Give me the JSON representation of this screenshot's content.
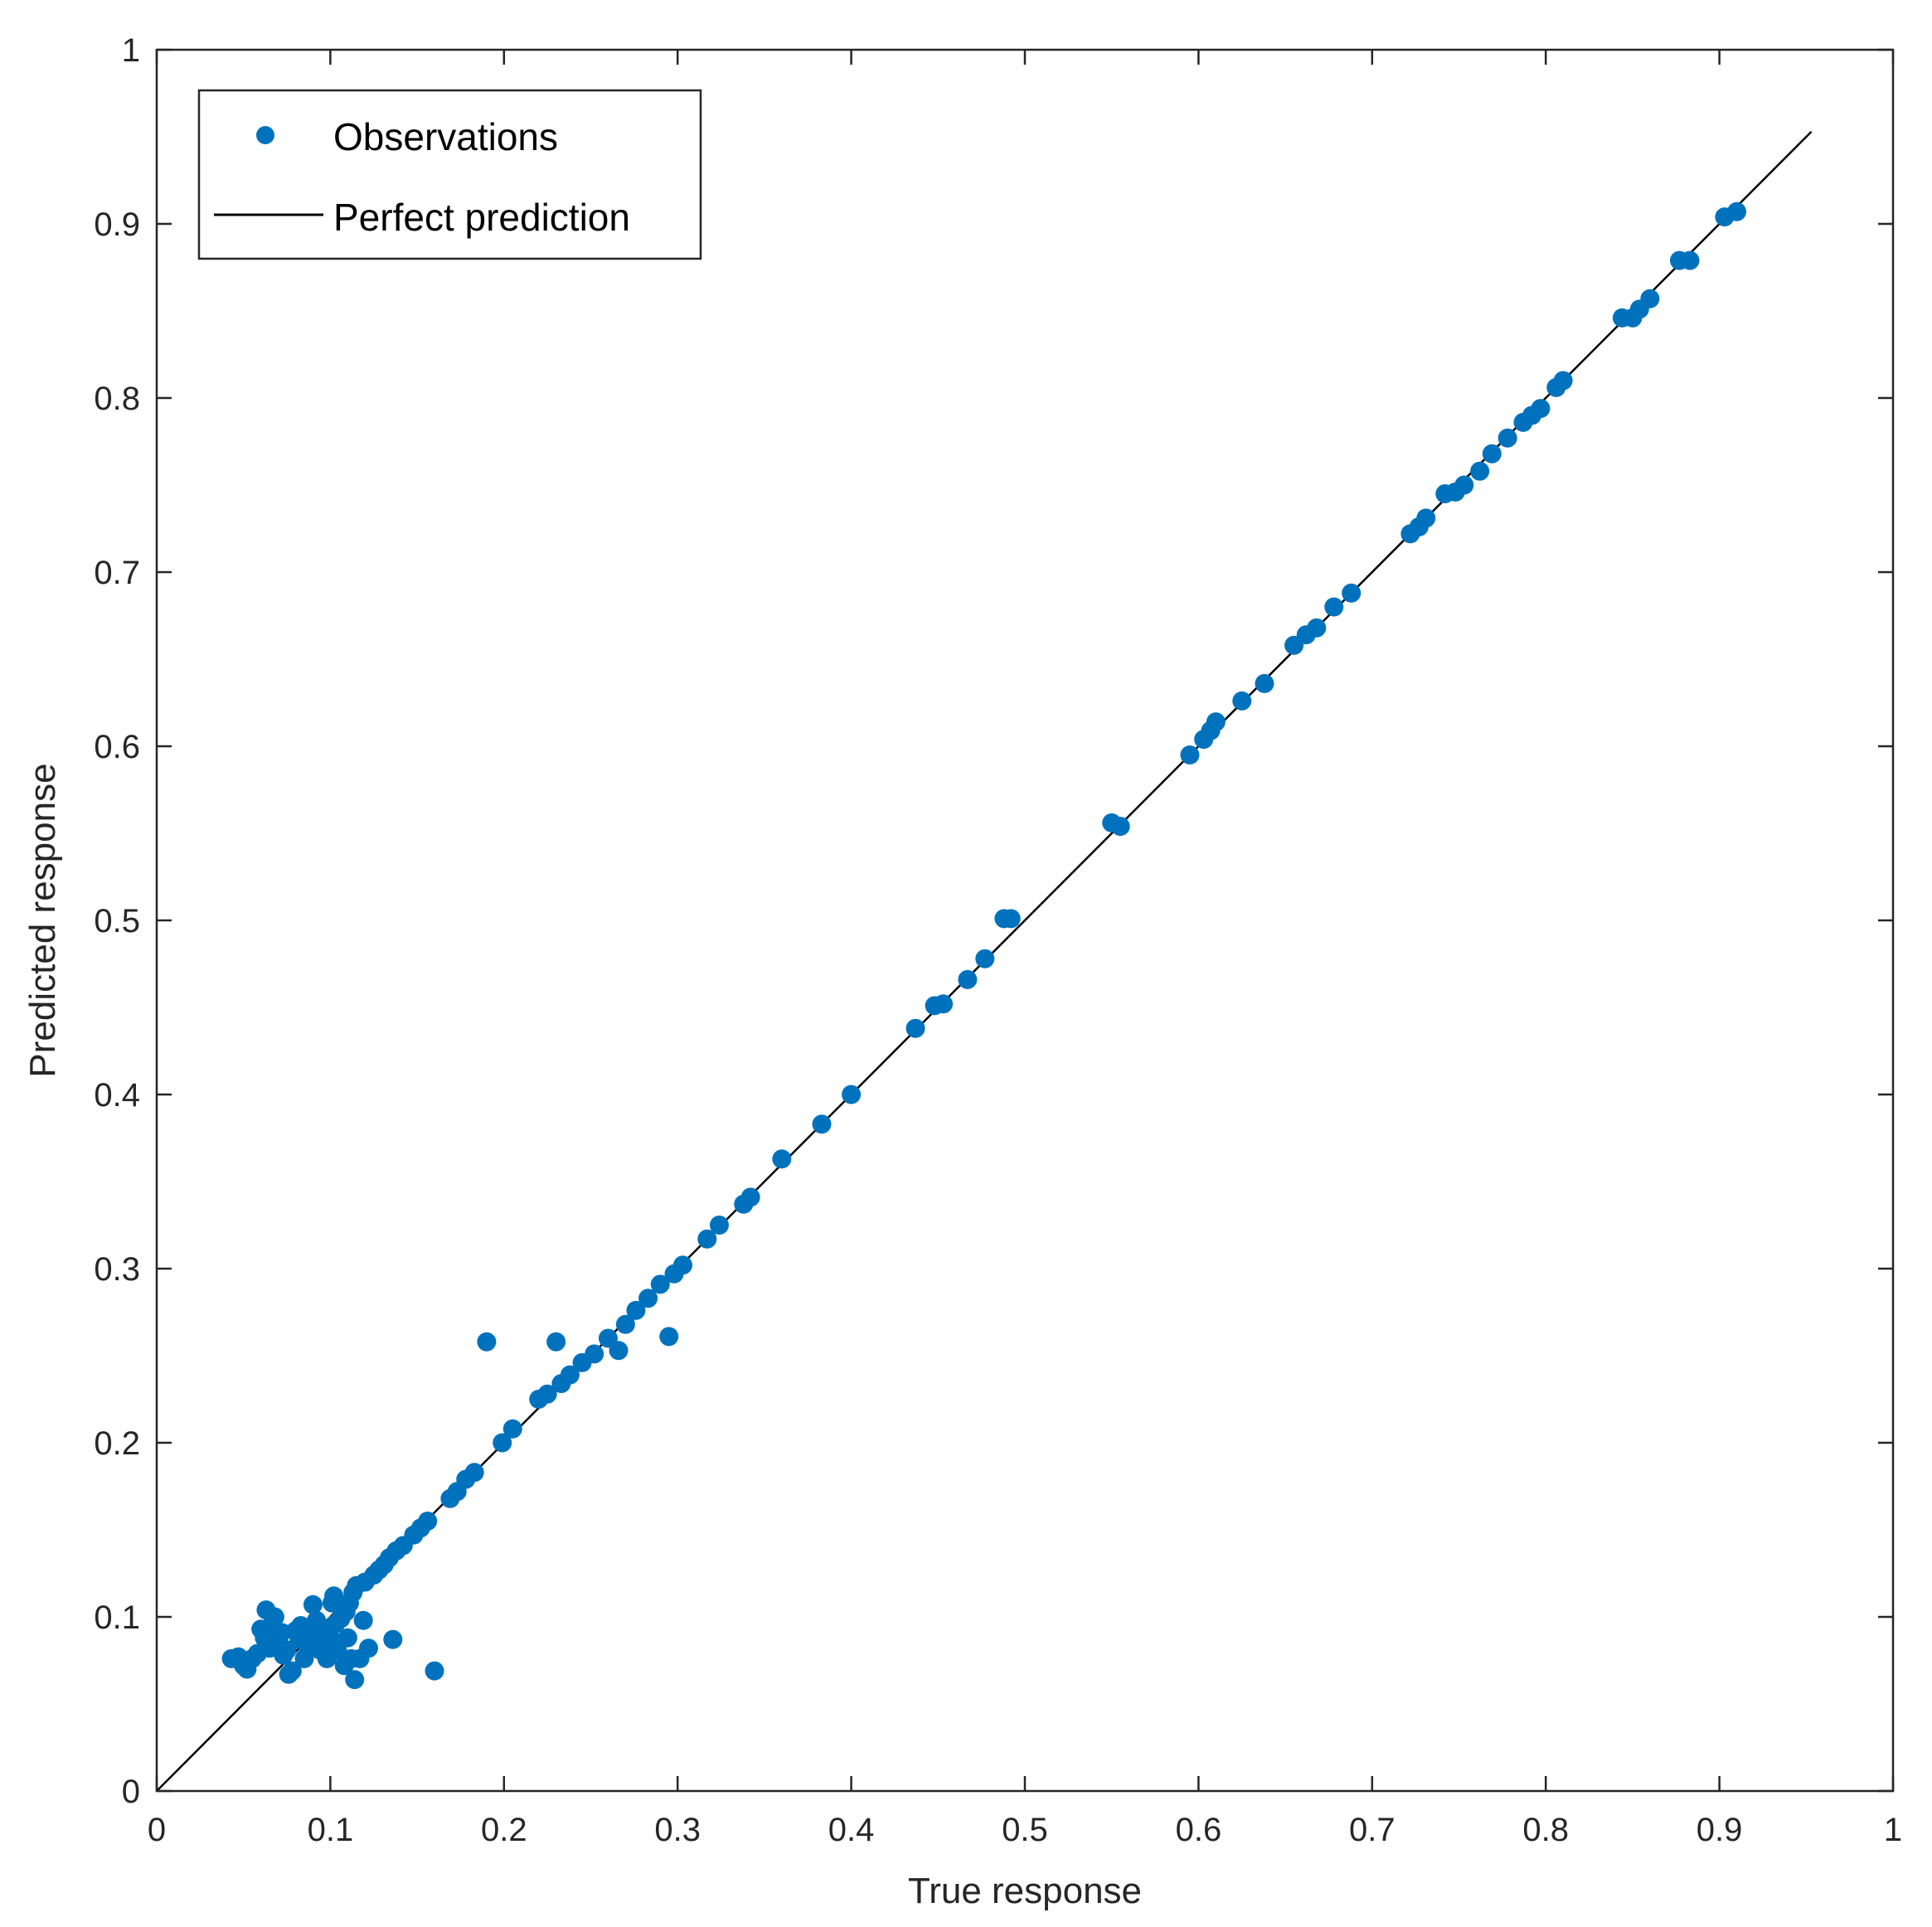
{
  "chart_data": {
    "type": "scatter",
    "title": "",
    "xlabel": "True response",
    "ylabel": "Predicted response",
    "xlim": [
      0,
      1
    ],
    "ylim": [
      0,
      1
    ],
    "xticks": [
      "0",
      "0.1",
      "0.2",
      "0.3",
      "0.4",
      "0.5",
      "0.6",
      "0.7",
      "0.8",
      "0.9",
      "1"
    ],
    "yticks": [
      "0",
      "0.1",
      "0.2",
      "0.3",
      "0.4",
      "0.5",
      "0.6",
      "0.7",
      "0.8",
      "0.9",
      "1"
    ],
    "grid": false,
    "legend": {
      "position": "top-left",
      "entries": [
        "Observations",
        "Perfect prediction"
      ]
    },
    "colors": {
      "observations": "#0072BD",
      "reference": "#000000",
      "axes": "#262626"
    },
    "series": [
      {
        "name": "Observations",
        "type": "scatter",
        "points": [
          [
            0.043,
            0.076
          ],
          [
            0.047,
            0.077
          ],
          [
            0.05,
            0.072
          ],
          [
            0.052,
            0.07
          ],
          [
            0.055,
            0.076
          ],
          [
            0.058,
            0.079
          ],
          [
            0.06,
            0.093
          ],
          [
            0.062,
            0.088
          ],
          [
            0.063,
            0.104
          ],
          [
            0.065,
            0.082
          ],
          [
            0.066,
            0.095
          ],
          [
            0.068,
            0.1
          ],
          [
            0.07,
            0.086
          ],
          [
            0.072,
            0.091
          ],
          [
            0.073,
            0.078
          ],
          [
            0.075,
            0.081
          ],
          [
            0.076,
            0.067
          ],
          [
            0.078,
            0.069
          ],
          [
            0.08,
            0.092
          ],
          [
            0.082,
            0.087
          ],
          [
            0.083,
            0.095
          ],
          [
            0.085,
            0.076
          ],
          [
            0.087,
            0.083
          ],
          [
            0.089,
            0.093
          ],
          [
            0.09,
            0.107
          ],
          [
            0.092,
            0.098
          ],
          [
            0.094,
            0.081
          ],
          [
            0.095,
            0.089
          ],
          [
            0.097,
            0.093
          ],
          [
            0.098,
            0.076
          ],
          [
            0.1,
            0.088
          ],
          [
            0.101,
            0.108
          ],
          [
            0.102,
            0.112
          ],
          [
            0.103,
            0.096
          ],
          [
            0.104,
            0.081
          ],
          [
            0.106,
            0.099
          ],
          [
            0.108,
            0.072
          ],
          [
            0.109,
            0.103
          ],
          [
            0.11,
            0.088
          ],
          [
            0.111,
            0.108
          ],
          [
            0.112,
            0.076
          ],
          [
            0.113,
            0.114
          ],
          [
            0.114,
            0.064
          ],
          [
            0.115,
            0.118
          ],
          [
            0.117,
            0.076
          ],
          [
            0.119,
            0.098
          ],
          [
            0.12,
            0.12
          ],
          [
            0.122,
            0.082
          ],
          [
            0.125,
            0.124
          ],
          [
            0.128,
            0.127
          ],
          [
            0.131,
            0.13
          ],
          [
            0.134,
            0.134
          ],
          [
            0.136,
            0.087
          ],
          [
            0.138,
            0.138
          ],
          [
            0.142,
            0.141
          ],
          [
            0.148,
            0.147
          ],
          [
            0.152,
            0.151
          ],
          [
            0.156,
            0.155
          ],
          [
            0.16,
            0.069
          ],
          [
            0.169,
            0.168
          ],
          [
            0.173,
            0.172
          ],
          [
            0.178,
            0.179
          ],
          [
            0.183,
            0.183
          ],
          [
            0.19,
            0.258
          ],
          [
            0.199,
            0.2
          ],
          [
            0.205,
            0.208
          ],
          [
            0.22,
            0.225
          ],
          [
            0.225,
            0.228
          ],
          [
            0.23,
            0.258
          ],
          [
            0.233,
            0.234
          ],
          [
            0.238,
            0.239
          ],
          [
            0.245,
            0.246
          ],
          [
            0.252,
            0.251
          ],
          [
            0.26,
            0.26
          ],
          [
            0.266,
            0.253
          ],
          [
            0.27,
            0.268
          ],
          [
            0.276,
            0.276
          ],
          [
            0.283,
            0.283
          ],
          [
            0.29,
            0.291
          ],
          [
            0.295,
            0.261
          ],
          [
            0.298,
            0.297
          ],
          [
            0.303,
            0.302
          ],
          [
            0.317,
            0.317
          ],
          [
            0.324,
            0.325
          ],
          [
            0.338,
            0.337
          ],
          [
            0.342,
            0.341
          ],
          [
            0.36,
            0.363
          ],
          [
            0.383,
            0.383
          ],
          [
            0.4,
            0.4
          ],
          [
            0.437,
            0.438
          ],
          [
            0.448,
            0.451
          ],
          [
            0.453,
            0.452
          ],
          [
            0.467,
            0.466
          ],
          [
            0.477,
            0.478
          ],
          [
            0.488,
            0.501
          ],
          [
            0.492,
            0.501
          ],
          [
            0.55,
            0.556
          ],
          [
            0.555,
            0.554
          ],
          [
            0.595,
            0.595
          ],
          [
            0.603,
            0.604
          ],
          [
            0.607,
            0.609
          ],
          [
            0.61,
            0.614
          ],
          [
            0.625,
            0.626
          ],
          [
            0.638,
            0.636
          ],
          [
            0.655,
            0.658
          ],
          [
            0.662,
            0.664
          ],
          [
            0.668,
            0.668
          ],
          [
            0.678,
            0.68
          ],
          [
            0.688,
            0.688
          ],
          [
            0.722,
            0.722
          ],
          [
            0.727,
            0.726
          ],
          [
            0.731,
            0.731
          ],
          [
            0.742,
            0.745
          ],
          [
            0.748,
            0.746
          ],
          [
            0.753,
            0.75
          ],
          [
            0.762,
            0.758
          ],
          [
            0.769,
            0.768
          ],
          [
            0.778,
            0.777
          ],
          [
            0.787,
            0.786
          ],
          [
            0.792,
            0.79
          ],
          [
            0.797,
            0.794
          ],
          [
            0.806,
            0.806
          ],
          [
            0.81,
            0.81
          ],
          [
            0.844,
            0.846
          ],
          [
            0.85,
            0.846
          ],
          [
            0.854,
            0.851
          ],
          [
            0.86,
            0.857
          ],
          [
            0.877,
            0.879
          ],
          [
            0.883,
            0.879
          ],
          [
            0.903,
            0.904
          ],
          [
            0.91,
            0.907
          ]
        ]
      },
      {
        "name": "Perfect prediction",
        "type": "line",
        "points": [
          [
            0,
            0
          ],
          [
            0.953,
            0.953
          ]
        ]
      }
    ]
  }
}
